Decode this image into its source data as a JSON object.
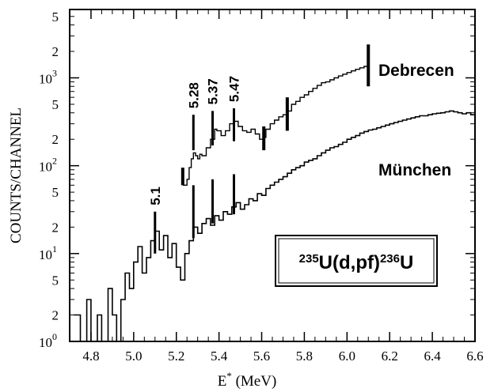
{
  "chart_data": {
    "type": "line",
    "xlabel": "E",
    "xlabel_sup": "*",
    "xlabel_unit": "(MeV)",
    "ylabel": "COUNTS/CHANNEL",
    "xlim": [
      4.7,
      6.6
    ],
    "ylim": [
      1,
      6000
    ],
    "y_scale": "log",
    "x_ticks": [
      4.8,
      5.0,
      5.2,
      5.4,
      5.6,
      5.8,
      6.0,
      6.2,
      6.4,
      6.6
    ],
    "x_tick_labels": [
      "4.8",
      "5.0",
      "5.2",
      "5.4",
      "5.6",
      "5.8",
      "6.0",
      "6.2",
      "6.4",
      "6.6"
    ],
    "y_decades": [
      {
        "value": 1,
        "base": "10",
        "exp": "0"
      },
      {
        "value": 10,
        "base": "10",
        "exp": "1"
      },
      {
        "value": 100,
        "base": "10",
        "exp": "2"
      },
      {
        "value": 1000,
        "base": "10",
        "exp": "3"
      }
    ],
    "y_minor_labels": [
      {
        "value": 2,
        "label": "2"
      },
      {
        "value": 5,
        "label": "5"
      },
      {
        "value": 20,
        "label": "2"
      },
      {
        "value": 50,
        "label": "5"
      },
      {
        "value": 200,
        "label": "2"
      },
      {
        "value": 500,
        "label": "5"
      },
      {
        "value": 2000,
        "label": "2"
      },
      {
        "value": 5000,
        "label": "5"
      }
    ],
    "series": [
      {
        "name": "Debrecen",
        "x": [
          5.23,
          5.25,
          5.26,
          5.27,
          5.28,
          5.29,
          5.3,
          5.31,
          5.32,
          5.34,
          5.36,
          5.38,
          5.39,
          5.41,
          5.43,
          5.45,
          5.47,
          5.49,
          5.51,
          5.53,
          5.55,
          5.57,
          5.59,
          5.61,
          5.62,
          5.64,
          5.66,
          5.68,
          5.7,
          5.72,
          5.74,
          5.76,
          5.78,
          5.8,
          5.82,
          5.84,
          5.86,
          5.88,
          5.9,
          5.92,
          5.94,
          5.96,
          5.98,
          6.0,
          6.02,
          6.04,
          6.06,
          6.08,
          6.1
        ],
        "y": [
          60,
          70,
          95,
          120,
          140,
          130,
          120,
          135,
          130,
          160,
          200,
          260,
          250,
          220,
          250,
          300,
          320,
          280,
          250,
          240,
          260,
          230,
          200,
          210,
          260,
          300,
          330,
          360,
          380,
          420,
          500,
          540,
          600,
          640,
          700,
          760,
          820,
          880,
          900,
          950,
          1000,
          1050,
          1100,
          1150,
          1200,
          1250,
          1300,
          1350,
          1450
        ]
      },
      {
        "name": "München",
        "x": [
          4.72,
          4.75,
          4.78,
          4.8,
          4.83,
          4.85,
          4.88,
          4.9,
          4.92,
          4.94,
          4.96,
          4.98,
          5.0,
          5.02,
          5.04,
          5.06,
          5.08,
          5.1,
          5.12,
          5.14,
          5.16,
          5.18,
          5.2,
          5.22,
          5.24,
          5.26,
          5.28,
          5.3,
          5.32,
          5.34,
          5.36,
          5.38,
          5.4,
          5.42,
          5.44,
          5.46,
          5.48,
          5.5,
          5.52,
          5.54,
          5.56,
          5.58,
          5.6,
          5.62,
          5.64,
          5.66,
          5.68,
          5.7,
          5.72,
          5.74,
          5.76,
          5.78,
          5.8,
          5.82,
          5.84,
          5.86,
          5.88,
          5.9,
          5.92,
          5.94,
          5.96,
          5.98,
          6.0,
          6.02,
          6.04,
          6.06,
          6.08,
          6.1,
          6.12,
          6.14,
          6.16,
          6.18,
          6.2,
          6.22,
          6.24,
          6.26,
          6.28,
          6.3,
          6.32,
          6.34,
          6.36,
          6.38,
          6.4,
          6.42,
          6.44,
          6.46,
          6.48,
          6.5,
          6.52,
          6.54,
          6.56,
          6.58,
          6.6
        ],
        "y": [
          2,
          1,
          3,
          1,
          2,
          1,
          4,
          2,
          1,
          3,
          6,
          4,
          8,
          12,
          6,
          9,
          14,
          18,
          11,
          16,
          9,
          13,
          7,
          5,
          10,
          14,
          20,
          17,
          22,
          25,
          21,
          27,
          24,
          30,
          28,
          34,
          38,
          32,
          36,
          42,
          40,
          48,
          46,
          55,
          60,
          65,
          70,
          75,
          82,
          90,
          95,
          100,
          110,
          115,
          120,
          130,
          140,
          150,
          160,
          165,
          175,
          185,
          200,
          210,
          220,
          235,
          245,
          255,
          260,
          270,
          280,
          290,
          300,
          310,
          320,
          330,
          340,
          350,
          360,
          370,
          370,
          380,
          390,
          395,
          400,
          410,
          420,
          410,
          400,
          390,
          400,
          380,
          390
        ]
      }
    ],
    "peak_markers": [
      {
        "x": 5.1,
        "label": "5.1",
        "y_bottom": 10,
        "y_top": 30
      },
      {
        "x": 5.28,
        "label": "5.28",
        "y_bottom": 150,
        "y_top": 380
      },
      {
        "x": 5.37,
        "label": "5.37",
        "y_bottom": 170,
        "y_top": 420
      },
      {
        "x": 5.47,
        "label": "5.47",
        "y_bottom": 190,
        "y_top": 450
      }
    ],
    "series_labels": [
      {
        "series": "Debrecen",
        "text": "Debrecen"
      },
      {
        "series": "München",
        "text": "München"
      }
    ],
    "reaction_label": {
      "pre_sup": "235",
      "main": "U(d,pf)",
      "mid_sup": "236",
      "post": "U"
    }
  }
}
